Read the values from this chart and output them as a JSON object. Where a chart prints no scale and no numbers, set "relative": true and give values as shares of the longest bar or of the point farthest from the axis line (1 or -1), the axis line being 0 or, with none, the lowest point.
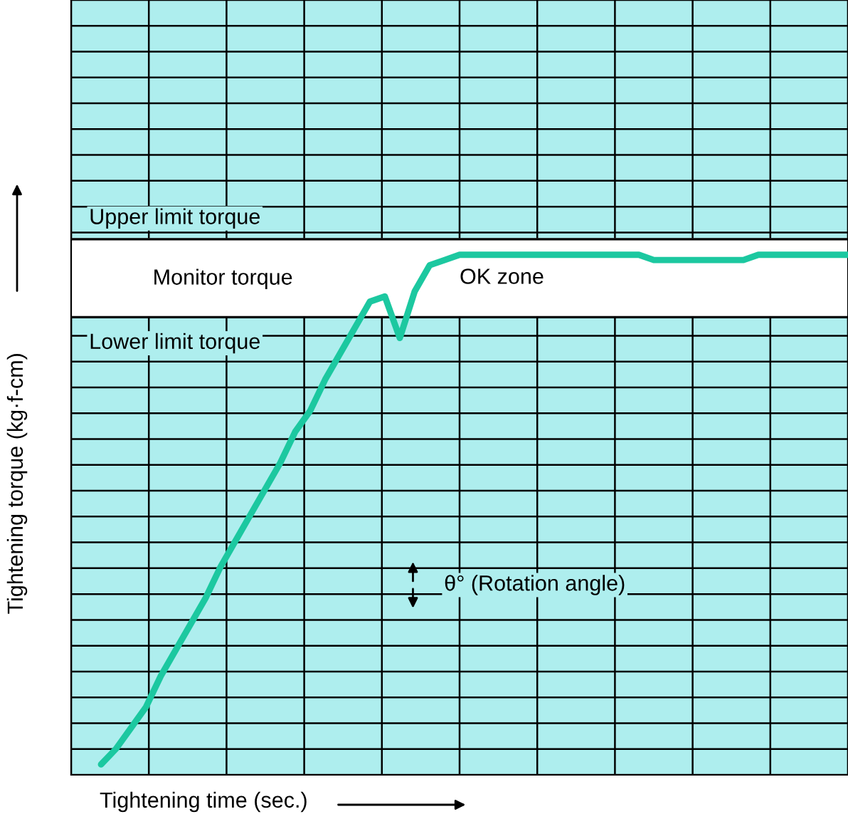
{
  "chart_data": {
    "type": "line",
    "relative": true,
    "xlabel": "Tightening time (sec.)",
    "ylabel": "Tightening torque (kg·f-cm)",
    "categories": [
      null,
      null,
      null,
      null,
      null,
      null,
      null,
      null,
      null,
      null,
      null,
      null,
      null,
      null,
      null,
      null,
      null,
      null,
      null,
      null,
      null,
      null,
      null,
      null,
      null,
      null,
      null,
      null,
      null,
      null,
      null,
      null,
      null,
      null,
      null,
      null,
      null,
      null,
      null,
      null,
      null,
      null,
      null,
      null,
      null,
      null,
      null,
      null,
      null,
      null,
      null,
      null,
      null
    ],
    "series": [
      {
        "color": "#1cc8a0",
        "values": [
          null,
          null,
          0.02,
          0.05,
          0.09,
          0.13,
          0.19,
          0.24,
          0.29,
          0.34,
          0.4,
          0.45,
          0.5,
          0.55,
          0.6,
          0.66,
          0.7,
          0.76,
          0.81,
          0.86,
          0.91,
          0.92,
          0.84,
          0.93,
          0.98,
          0.99,
          1,
          1,
          1,
          1,
          1,
          1,
          1,
          1,
          1,
          1,
          1,
          1,
          1,
          0.99,
          0.99,
          0.99,
          0.99,
          0.99,
          0.99,
          0.99,
          1,
          1,
          1,
          1,
          1,
          1,
          1
        ]
      }
    ],
    "bands": [
      {
        "axis": "y",
        "from": 0.88,
        "to": 1.03,
        "label": "OK zone",
        "color": "#ffffff"
      }
    ],
    "ref_lines": [
      {
        "axis": "y",
        "value": 1.03,
        "label": "Upper limit torque",
        "color": "#000000"
      },
      {
        "axis": "y",
        "value": 0.88,
        "label": "Lower limit torque",
        "color": "#000000"
      }
    ],
    "annotations": [
      "Monitor torque",
      "θ° (Rotation angle)"
    ],
    "grid": true,
    "marker": "none",
    "line_style": "solid"
  }
}
